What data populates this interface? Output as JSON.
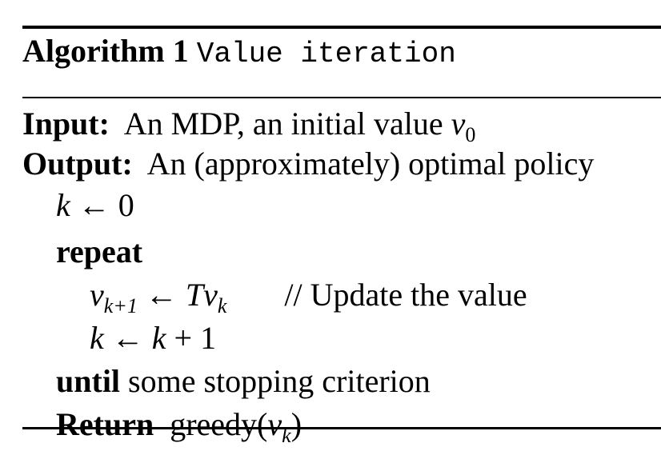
{
  "algorithm": {
    "label": "Algorithm 1",
    "name": "Value iteration"
  },
  "input": {
    "label": "Input:",
    "text": "An MDP, an initial value",
    "var": "v",
    "sub": "0"
  },
  "output": {
    "label": "Output:",
    "text": "An (approximately) optimal policy"
  },
  "lines": {
    "init": {
      "lhs": "k",
      "arrow": "←",
      "rhs": "0"
    },
    "repeat_kw": "repeat",
    "update": {
      "lhs_var": "v",
      "lhs_sub": "k+1",
      "arrow": "←",
      "op": "T",
      "rhs_var": "v",
      "rhs_sub": "k",
      "comment": "// Update the value"
    },
    "incr": {
      "lhs": "k",
      "arrow": "←",
      "rhs_var": "k",
      "rhs_op": "+",
      "rhs_num": "1"
    },
    "until": {
      "kw": "until",
      "text": "some stopping criterion"
    },
    "return": {
      "kw": "Return",
      "fn": "greedy(",
      "var": "v",
      "sub": "k",
      "close": ")"
    }
  }
}
